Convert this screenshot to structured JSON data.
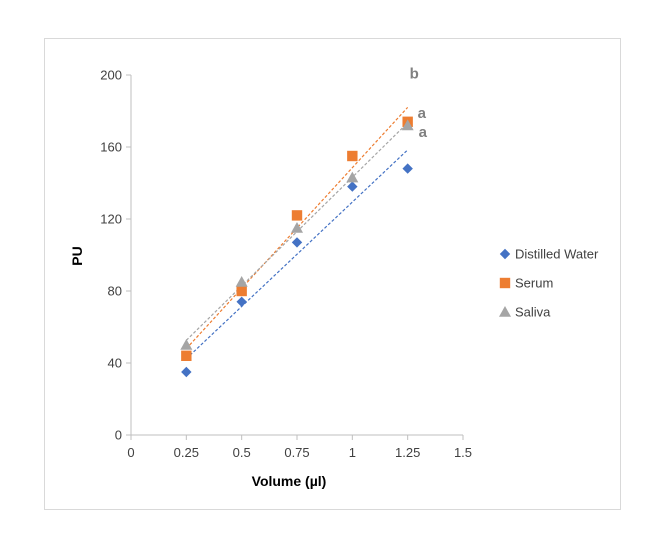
{
  "chart_data": {
    "type": "scatter",
    "xlabel": "Volume (µl)",
    "ylabel": "PU",
    "xlim": [
      0,
      1.5
    ],
    "ylim": [
      0,
      200
    ],
    "xticks": [
      0,
      0.25,
      0.5,
      0.75,
      1,
      1.25,
      1.5
    ],
    "xtick_labels": [
      "0",
      "0.25",
      "0.5",
      "0.75",
      "1",
      "1.25",
      "1.5"
    ],
    "yticks": [
      0,
      40,
      80,
      120,
      160,
      200
    ],
    "ytick_labels": [
      "0",
      "40",
      "80",
      "120",
      "160",
      "200"
    ],
    "grid": false,
    "legend_position": "right",
    "trendlines": "linear, dashed",
    "series": [
      {
        "name": "Distilled Water",
        "marker": "diamond",
        "color": "#4472C4",
        "x": [
          0.25,
          0.5,
          0.75,
          1,
          1.25
        ],
        "y": [
          35,
          74,
          107,
          138,
          148
        ],
        "annotation": "a"
      },
      {
        "name": "Serum",
        "marker": "square",
        "color": "#ED7D31",
        "x": [
          0.25,
          0.5,
          0.75,
          1,
          1.25
        ],
        "y": [
          44,
          80,
          122,
          155,
          174
        ],
        "annotation": "b"
      },
      {
        "name": "Saliva",
        "marker": "triangle",
        "color": "#A5A5A5",
        "x": [
          0.25,
          0.5,
          0.75,
          1,
          1.25
        ],
        "y": [
          50,
          85,
          115,
          143,
          172
        ],
        "annotation": "a"
      }
    ]
  }
}
